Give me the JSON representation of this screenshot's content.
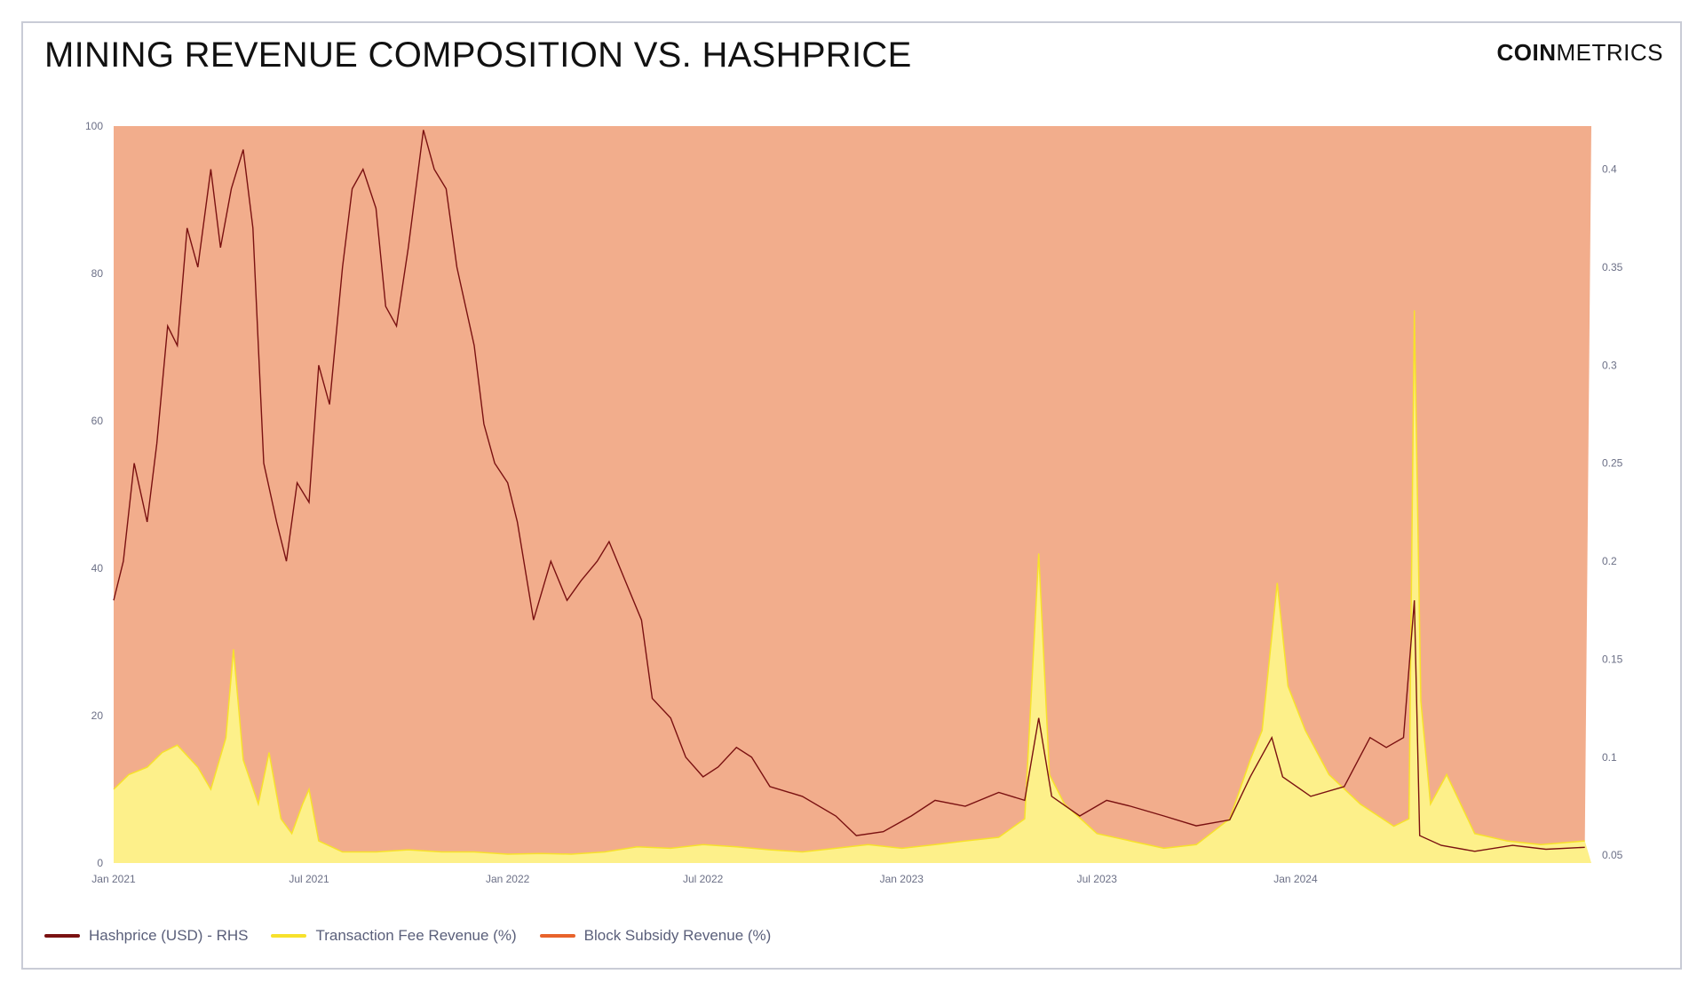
{
  "title": "MINING REVENUE COMPOSITION VS. HASHPRICE",
  "brand": {
    "bold": "COIN",
    "light": "METRICS"
  },
  "colors": {
    "hashprice": "#7a1111",
    "fee_line": "#f7e12b",
    "fee_fill": "#fdf08a",
    "subsidy_line": "#e8632b",
    "subsidy_fill": "#f2ad8c"
  },
  "legend": [
    {
      "label": "Hashprice (USD) - RHS",
      "color": "#7a1111"
    },
    {
      "label": "Transaction Fee Revenue (%)",
      "color": "#f7e12b"
    },
    {
      "label": "Block Subsidy Revenue (%)",
      "color": "#e8632b"
    }
  ],
  "chart_data": {
    "type": "area",
    "x_ticks": [
      "Jan 2021",
      "Jul 2021",
      "Jan 2022",
      "Jul 2022",
      "Jan 2023",
      "Jul 2023",
      "Jan 2024"
    ],
    "y_left_ticks": [
      "0",
      "20",
      "40",
      "60",
      "80",
      "100"
    ],
    "y_right_ticks": [
      "0.05",
      "0.1",
      "0.15",
      "0.2",
      "0.25",
      "0.3",
      "0.35",
      "0.4"
    ],
    "ylim_left": [
      0,
      100
    ],
    "ylim_right": [
      0.046,
      0.422
    ],
    "xlim": [
      "2021-01-01",
      "2024-10-01"
    ],
    "legend_position": "bottom-left",
    "grid": false,
    "series": [
      {
        "name": "Hashprice (USD) - RHS",
        "axis": "right",
        "type": "line",
        "points": [
          [
            "2021-01-01",
            0.18
          ],
          [
            "2021-01-10",
            0.2
          ],
          [
            "2021-01-20",
            0.25
          ],
          [
            "2021-02-01",
            0.22
          ],
          [
            "2021-02-10",
            0.26
          ],
          [
            "2021-02-20",
            0.32
          ],
          [
            "2021-03-01",
            0.31
          ],
          [
            "2021-03-10",
            0.37
          ],
          [
            "2021-03-20",
            0.35
          ],
          [
            "2021-04-01",
            0.4
          ],
          [
            "2021-04-10",
            0.36
          ],
          [
            "2021-04-20",
            0.39
          ],
          [
            "2021-05-01",
            0.41
          ],
          [
            "2021-05-10",
            0.37
          ],
          [
            "2021-05-20",
            0.25
          ],
          [
            "2021-06-01",
            0.22
          ],
          [
            "2021-06-10",
            0.2
          ],
          [
            "2021-06-20",
            0.24
          ],
          [
            "2021-07-01",
            0.23
          ],
          [
            "2021-07-10",
            0.3
          ],
          [
            "2021-07-20",
            0.28
          ],
          [
            "2021-08-01",
            0.35
          ],
          [
            "2021-08-10",
            0.39
          ],
          [
            "2021-08-20",
            0.4
          ],
          [
            "2021-09-01",
            0.38
          ],
          [
            "2021-09-10",
            0.33
          ],
          [
            "2021-09-20",
            0.32
          ],
          [
            "2021-10-01",
            0.36
          ],
          [
            "2021-10-15",
            0.42
          ],
          [
            "2021-10-25",
            0.4
          ],
          [
            "2021-11-05",
            0.39
          ],
          [
            "2021-11-15",
            0.35
          ],
          [
            "2021-12-01",
            0.31
          ],
          [
            "2021-12-10",
            0.27
          ],
          [
            "2021-12-20",
            0.25
          ],
          [
            "2022-01-01",
            0.24
          ],
          [
            "2022-01-10",
            0.22
          ],
          [
            "2022-01-25",
            0.17
          ],
          [
            "2022-02-10",
            0.2
          ],
          [
            "2022-02-25",
            0.18
          ],
          [
            "2022-03-10",
            0.19
          ],
          [
            "2022-03-25",
            0.2
          ],
          [
            "2022-04-05",
            0.21
          ],
          [
            "2022-04-20",
            0.19
          ],
          [
            "2022-05-05",
            0.17
          ],
          [
            "2022-05-15",
            0.13
          ],
          [
            "2022-06-01",
            0.12
          ],
          [
            "2022-06-15",
            0.1
          ],
          [
            "2022-07-01",
            0.09
          ],
          [
            "2022-07-15",
            0.095
          ],
          [
            "2022-08-01",
            0.105
          ],
          [
            "2022-08-15",
            0.1
          ],
          [
            "2022-09-01",
            0.085
          ],
          [
            "2022-10-01",
            0.08
          ],
          [
            "2022-11-01",
            0.07
          ],
          [
            "2022-11-20",
            0.06
          ],
          [
            "2022-12-15",
            0.062
          ],
          [
            "2023-01-10",
            0.07
          ],
          [
            "2023-02-01",
            0.078
          ],
          [
            "2023-03-01",
            0.075
          ],
          [
            "2023-04-01",
            0.082
          ],
          [
            "2023-04-25",
            0.078
          ],
          [
            "2023-05-08",
            0.12
          ],
          [
            "2023-05-20",
            0.08
          ],
          [
            "2023-06-15",
            0.07
          ],
          [
            "2023-07-10",
            0.078
          ],
          [
            "2023-08-01",
            0.075
          ],
          [
            "2023-09-01",
            0.07
          ],
          [
            "2023-10-01",
            0.065
          ],
          [
            "2023-11-01",
            0.068
          ],
          [
            "2023-11-20",
            0.09
          ],
          [
            "2023-12-10",
            0.11
          ],
          [
            "2023-12-20",
            0.09
          ],
          [
            "2024-01-15",
            0.08
          ],
          [
            "2024-02-15",
            0.085
          ],
          [
            "2024-03-10",
            0.11
          ],
          [
            "2024-03-25",
            0.105
          ],
          [
            "2024-04-10",
            0.11
          ],
          [
            "2024-04-20",
            0.18
          ],
          [
            "2024-04-25",
            0.06
          ],
          [
            "2024-05-15",
            0.055
          ],
          [
            "2024-06-15",
            0.052
          ],
          [
            "2024-07-20",
            0.055
          ],
          [
            "2024-08-20",
            0.053
          ],
          [
            "2024-09-25",
            0.054
          ]
        ]
      },
      {
        "name": "Transaction Fee Revenue (%)",
        "axis": "left",
        "type": "area",
        "points": [
          [
            "2021-01-01",
            10
          ],
          [
            "2021-01-15",
            12
          ],
          [
            "2021-02-01",
            13
          ],
          [
            "2021-02-15",
            15
          ],
          [
            "2021-03-01",
            16
          ],
          [
            "2021-03-20",
            13
          ],
          [
            "2021-04-01",
            10
          ],
          [
            "2021-04-15",
            17
          ],
          [
            "2021-04-22",
            29
          ],
          [
            "2021-05-01",
            14
          ],
          [
            "2021-05-15",
            8
          ],
          [
            "2021-05-25",
            15
          ],
          [
            "2021-06-05",
            6
          ],
          [
            "2021-06-15",
            4
          ],
          [
            "2021-06-25",
            8
          ],
          [
            "2021-07-01",
            10
          ],
          [
            "2021-07-10",
            3
          ],
          [
            "2021-08-01",
            1.5
          ],
          [
            "2021-09-01",
            1.5
          ],
          [
            "2021-10-01",
            1.8
          ],
          [
            "2021-11-01",
            1.5
          ],
          [
            "2021-12-01",
            1.5
          ],
          [
            "2022-01-01",
            1.2
          ],
          [
            "2022-02-01",
            1.3
          ],
          [
            "2022-03-01",
            1.2
          ],
          [
            "2022-04-01",
            1.5
          ],
          [
            "2022-05-01",
            2.2
          ],
          [
            "2022-06-01",
            2
          ],
          [
            "2022-07-01",
            2.5
          ],
          [
            "2022-08-01",
            2.2
          ],
          [
            "2022-09-01",
            1.8
          ],
          [
            "2022-10-01",
            1.5
          ],
          [
            "2022-11-01",
            2
          ],
          [
            "2022-12-01",
            2.5
          ],
          [
            "2023-01-01",
            2
          ],
          [
            "2023-02-01",
            2.5
          ],
          [
            "2023-03-01",
            3
          ],
          [
            "2023-04-01",
            3.5
          ],
          [
            "2023-04-25",
            6
          ],
          [
            "2023-05-08",
            42
          ],
          [
            "2023-05-18",
            12
          ],
          [
            "2023-06-01",
            8
          ],
          [
            "2023-07-01",
            4
          ],
          [
            "2023-08-01",
            3
          ],
          [
            "2023-09-01",
            2
          ],
          [
            "2023-10-01",
            2.5
          ],
          [
            "2023-11-01",
            6
          ],
          [
            "2023-11-20",
            14
          ],
          [
            "2023-12-01",
            18
          ],
          [
            "2023-12-15",
            38
          ],
          [
            "2023-12-25",
            24
          ],
          [
            "2024-01-10",
            18
          ],
          [
            "2024-02-01",
            12
          ],
          [
            "2024-03-01",
            8
          ],
          [
            "2024-04-01",
            5
          ],
          [
            "2024-04-15",
            6
          ],
          [
            "2024-04-20",
            75
          ],
          [
            "2024-04-26",
            22
          ],
          [
            "2024-05-05",
            8
          ],
          [
            "2024-05-20",
            12
          ],
          [
            "2024-06-15",
            4
          ],
          [
            "2024-07-15",
            3
          ],
          [
            "2024-08-15",
            2.5
          ],
          [
            "2024-09-25",
            3
          ]
        ]
      },
      {
        "name": "Block Subsidy Revenue (%)",
        "axis": "left",
        "type": "area",
        "values_note": "100 minus Transaction Fee Revenue (%)"
      }
    ]
  }
}
